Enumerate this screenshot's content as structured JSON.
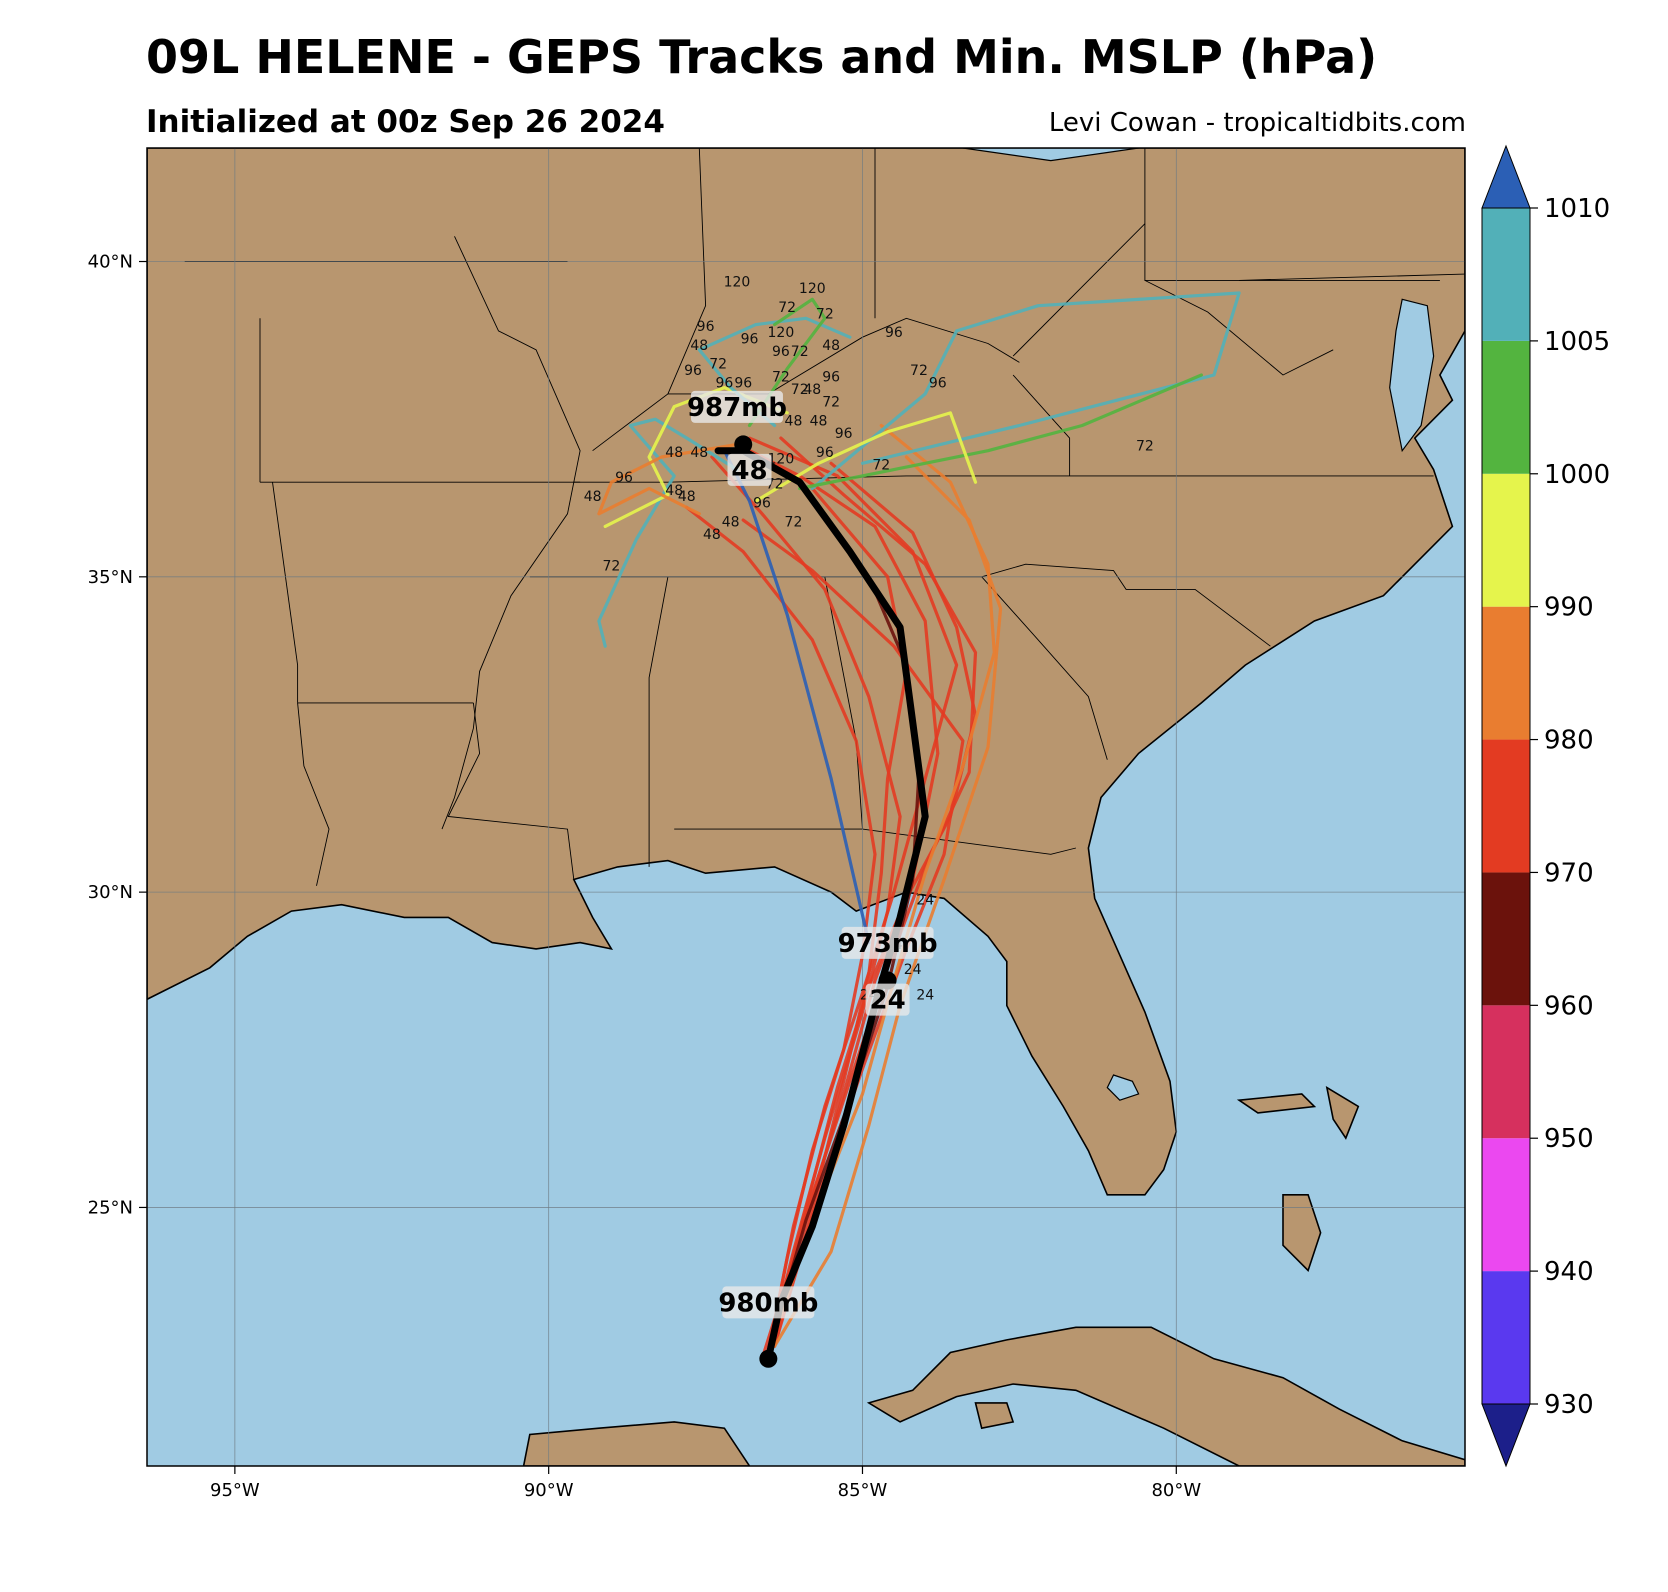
{
  "header": {
    "title": "09L HELENE - GEPS Tracks and Min. MSLP (hPa)",
    "subtitle": "Initialized at 00z Sep 26 2024",
    "credit": "Levi Cowan - tropicaltidbits.com"
  },
  "map": {
    "lon_range": [
      -96.4,
      -75.4
    ],
    "lat_range": [
      20.9,
      41.8
    ],
    "lon_ticks": [
      {
        "lon": -95,
        "label": "95°W"
      },
      {
        "lon": -90,
        "label": "90°W"
      },
      {
        "lon": -85,
        "label": "85°W"
      },
      {
        "lon": -80,
        "label": "80°W"
      }
    ],
    "lat_ticks": [
      {
        "lat": 40,
        "label": "40°N"
      },
      {
        "lat": 35,
        "label": "35°N"
      },
      {
        "lat": 30,
        "label": "30°N"
      },
      {
        "lat": 25,
        "label": "25°N"
      }
    ],
    "colors": {
      "land": "#b8966f",
      "water": "#a0cbe3",
      "border": "#000000",
      "grid": "#6e7b82"
    }
  },
  "colorbar": {
    "levels": [
      {
        "label": "1010",
        "color": "#2b5fb5"
      },
      {
        "label": "1005",
        "color": "#52b0b8"
      },
      {
        "label": "1000",
        "color": "#53b43f"
      },
      {
        "label": "990",
        "color": "#e5f44c"
      },
      {
        "label": "980",
        "color": "#e97d30"
      },
      {
        "label": "970",
        "color": "#e33b22"
      },
      {
        "label": "960",
        "color": "#6b120c"
      },
      {
        "label": "950",
        "color": "#d6305e"
      },
      {
        "label": "940",
        "color": "#eb48f0"
      },
      {
        "label": "930",
        "color": "#5a39ef"
      }
    ],
    "lower_cap_color": "#1c1f8a",
    "upper_cap_color": "#2b5fb5",
    "bands": [
      "#5a39ef",
      "#eb48f0",
      "#d6305e",
      "#6b120c",
      "#e33b22",
      "#e97d30",
      "#e5f44c",
      "#53b43f",
      "#52b0b8"
    ]
  },
  "tracks": [
    {
      "color": "#e33b22",
      "points": [
        [
          -86.6,
          22.6
        ],
        [
          -86.0,
          24.5
        ],
        [
          -85.3,
          26.8
        ],
        [
          -84.8,
          28.6
        ],
        [
          -84.2,
          30.2
        ],
        [
          -83.8,
          32.2
        ],
        [
          -84.0,
          34.3
        ],
        [
          -84.8,
          35.8
        ],
        [
          -86.0,
          36.6
        ],
        [
          -87.0,
          37.1
        ]
      ]
    },
    {
      "color": "#e33b22",
      "points": [
        [
          -86.5,
          22.7
        ],
        [
          -86.1,
          24.7
        ],
        [
          -85.6,
          26.6
        ],
        [
          -85.0,
          28.4
        ],
        [
          -84.5,
          30.0
        ],
        [
          -84.0,
          31.8
        ],
        [
          -83.5,
          33.6
        ],
        [
          -84.2,
          35.4
        ],
        [
          -85.4,
          36.6
        ],
        [
          -86.8,
          37.2
        ]
      ]
    },
    {
      "color": "#e33b22",
      "points": [
        [
          -86.5,
          22.7
        ],
        [
          -85.9,
          24.9
        ],
        [
          -85.2,
          27.0
        ],
        [
          -84.6,
          28.8
        ],
        [
          -84.0,
          30.4
        ],
        [
          -83.3,
          31.9
        ],
        [
          -83.2,
          33.8
        ],
        [
          -84.0,
          35.2
        ],
        [
          -85.3,
          36.3
        ],
        [
          -86.3,
          37.2
        ]
      ]
    },
    {
      "color": "#e33b22",
      "points": [
        [
          -86.4,
          22.8
        ],
        [
          -85.8,
          25.0
        ],
        [
          -85.3,
          27.0
        ],
        [
          -84.9,
          28.7
        ],
        [
          -84.7,
          30.3
        ],
        [
          -84.6,
          31.8
        ],
        [
          -84.3,
          33.5
        ],
        [
          -84.6,
          35.0
        ],
        [
          -85.8,
          36.4
        ]
      ]
    },
    {
      "color": "#e33b22",
      "points": [
        [
          -86.5,
          22.7
        ],
        [
          -86.0,
          24.6
        ],
        [
          -85.4,
          26.9
        ],
        [
          -84.9,
          28.5
        ],
        [
          -84.3,
          29.9
        ],
        [
          -83.6,
          31.2
        ],
        [
          -83.2,
          32.8
        ],
        [
          -83.5,
          34.2
        ],
        [
          -84.2,
          35.7
        ],
        [
          -85.5,
          36.8
        ]
      ]
    },
    {
      "color": "#e33b22",
      "points": [
        [
          -86.5,
          22.7
        ],
        [
          -86.1,
          24.3
        ],
        [
          -85.6,
          26.1
        ],
        [
          -85.0,
          28.1
        ],
        [
          -84.6,
          29.7
        ],
        [
          -84.4,
          31.2
        ],
        [
          -84.9,
          33.1
        ],
        [
          -85.6,
          34.8
        ],
        [
          -86.6,
          36.0
        ],
        [
          -87.4,
          36.9
        ]
      ]
    },
    {
      "color": "#e33b22",
      "points": [
        [
          -86.4,
          22.8
        ],
        [
          -85.7,
          25.2
        ],
        [
          -85.0,
          27.2
        ],
        [
          -84.3,
          29.1
        ],
        [
          -83.7,
          30.6
        ],
        [
          -83.4,
          32.4
        ],
        [
          -84.5,
          33.9
        ],
        [
          -85.8,
          35.1
        ],
        [
          -86.9,
          35.9
        ]
      ]
    },
    {
      "color": "#e97d30",
      "points": [
        [
          -86.4,
          22.8
        ],
        [
          -85.5,
          24.3
        ],
        [
          -84.9,
          26.3
        ],
        [
          -84.4,
          28.2
        ],
        [
          -83.7,
          30.2
        ],
        [
          -83.0,
          32.3
        ],
        [
          -82.8,
          34.5
        ],
        [
          -83.3,
          35.9
        ],
        [
          -84.3,
          36.9
        ]
      ]
    },
    {
      "color": "#e97d30",
      "points": [
        [
          -86.5,
          22.7
        ],
        [
          -85.8,
          24.8
        ],
        [
          -85.0,
          26.8
        ],
        [
          -84.5,
          28.6
        ],
        [
          -84.0,
          30.3
        ],
        [
          -83.4,
          32.0
        ],
        [
          -82.9,
          33.8
        ],
        [
          -83.0,
          35.2
        ],
        [
          -83.6,
          36.5
        ],
        [
          -84.7,
          37.4
        ]
      ]
    },
    {
      "color": "#6b120c",
      "points": [
        [
          -86.5,
          22.7
        ],
        [
          -85.9,
          24.8
        ],
        [
          -85.2,
          26.7
        ],
        [
          -84.6,
          28.5
        ],
        [
          -84.2,
          30.2
        ],
        [
          -84.1,
          31.9
        ],
        [
          -84.3,
          33.6
        ],
        [
          -84.9,
          35.0
        ]
      ]
    },
    {
      "color": "#e33b22",
      "points": [
        [
          -86.5,
          22.7
        ],
        [
          -86.2,
          24.2
        ],
        [
          -85.8,
          25.9
        ],
        [
          -85.3,
          27.5
        ],
        [
          -85.0,
          29.0
        ],
        [
          -84.8,
          30.6
        ],
        [
          -85.1,
          32.4
        ],
        [
          -85.8,
          34.0
        ],
        [
          -86.9,
          35.4
        ],
        [
          -87.8,
          36.1
        ]
      ]
    },
    {
      "color": "#2b5fb5",
      "points": [
        [
          -84.9,
          29.2
        ],
        [
          -85.5,
          31.8
        ],
        [
          -86.2,
          34.4
        ],
        [
          -86.8,
          36.2
        ],
        [
          -87.2,
          37.0
        ]
      ]
    },
    {
      "color": "#52b0b8",
      "points": [
        [
          -85.8,
          36.4
        ],
        [
          -84.0,
          37.9
        ],
        [
          -83.5,
          38.9
        ],
        [
          -82.2,
          39.3
        ],
        [
          -79.0,
          39.5
        ],
        [
          -79.4,
          38.2
        ],
        [
          -82.5,
          37.4
        ],
        [
          -85.0,
          36.8
        ]
      ]
    },
    {
      "color": "#52b0b8",
      "points": [
        [
          -87.0,
          36.7
        ],
        [
          -87.8,
          37.2
        ],
        [
          -88.3,
          37.5
        ],
        [
          -88.7,
          37.4
        ],
        [
          -88.0,
          36.6
        ],
        [
          -88.6,
          35.6
        ],
        [
          -89.2,
          34.3
        ],
        [
          -89.1,
          33.9
        ]
      ]
    },
    {
      "color": "#53b43f",
      "points": [
        [
          -86.0,
          36.4
        ],
        [
          -84.5,
          36.7
        ],
        [
          -83.0,
          37.0
        ],
        [
          -81.5,
          37.4
        ],
        [
          -79.6,
          38.2
        ]
      ]
    },
    {
      "color": "#e5f44c",
      "points": [
        [
          -86.7,
          36.2
        ],
        [
          -85.7,
          36.8
        ],
        [
          -84.6,
          37.3
        ],
        [
          -83.6,
          37.6
        ],
        [
          -83.2,
          36.5
        ]
      ]
    },
    {
      "color": "#e5f44c",
      "points": [
        [
          -86.2,
          37.6
        ],
        [
          -87.2,
          38.0
        ],
        [
          -88.0,
          37.7
        ],
        [
          -88.4,
          36.9
        ],
        [
          -88.1,
          36.3
        ],
        [
          -89.1,
          35.8
        ]
      ]
    },
    {
      "color": "#e97d30",
      "points": [
        [
          -87.0,
          37.1
        ],
        [
          -88.2,
          36.9
        ],
        [
          -89.0,
          36.5
        ],
        [
          -89.2,
          36.0
        ],
        [
          -88.4,
          36.4
        ],
        [
          -87.6,
          36.0
        ]
      ]
    },
    {
      "color": "#52b0b8",
      "points": [
        [
          -86.4,
          37.4
        ],
        [
          -87.1,
          38.0
        ],
        [
          -87.6,
          38.6
        ],
        [
          -86.7,
          39.0
        ],
        [
          -85.9,
          39.1
        ],
        [
          -85.2,
          38.8
        ]
      ]
    },
    {
      "color": "#53b43f",
      "points": [
        [
          -86.8,
          37.4
        ],
        [
          -86.2,
          38.3
        ],
        [
          -85.6,
          39.1
        ],
        [
          -85.8,
          39.4
        ],
        [
          -86.4,
          39.0
        ]
      ]
    }
  ],
  "mean_track": {
    "color": "#000000",
    "points": [
      [
        -86.5,
        22.6
      ],
      [
        -86.3,
        23.5
      ],
      [
        -85.8,
        24.7
      ],
      [
        -85.3,
        26.3
      ],
      [
        -84.8,
        28.2
      ],
      [
        -84.4,
        29.6
      ],
      [
        -84.0,
        31.2
      ],
      [
        -84.2,
        32.7
      ],
      [
        -84.4,
        34.2
      ],
      [
        -85.2,
        35.4
      ],
      [
        -86.0,
        36.5
      ],
      [
        -86.9,
        37.0
      ],
      [
        -87.3,
        37.0
      ]
    ]
  },
  "hour_labels": [
    {
      "text": "120",
      "lon": -87.0,
      "lat": 39.6
    },
    {
      "text": "120",
      "lon": -85.8,
      "lat": 39.5
    },
    {
      "text": "72",
      "lon": -86.2,
      "lat": 39.2
    },
    {
      "text": "72",
      "lon": -85.6,
      "lat": 39.1
    },
    {
      "text": "96",
      "lon": -87.5,
      "lat": 38.9
    },
    {
      "text": "96",
      "lon": -86.8,
      "lat": 38.7
    },
    {
      "text": "120",
      "lon": -86.3,
      "lat": 38.8
    },
    {
      "text": "96",
      "lon": -84.5,
      "lat": 38.8
    },
    {
      "text": "48",
      "lon": -87.6,
      "lat": 38.6
    },
    {
      "text": "96",
      "lon": -86.3,
      "lat": 38.5
    },
    {
      "text": "72",
      "lon": -86.0,
      "lat": 38.5
    },
    {
      "text": "48",
      "lon": -85.5,
      "lat": 38.6
    },
    {
      "text": "72",
      "lon": -87.3,
      "lat": 38.3
    },
    {
      "text": "96",
      "lon": -87.7,
      "lat": 38.2
    },
    {
      "text": "72",
      "lon": -84.1,
      "lat": 38.2
    },
    {
      "text": "96",
      "lon": -83.8,
      "lat": 38.0
    },
    {
      "text": "96",
      "lon": -87.2,
      "lat": 38.0
    },
    {
      "text": "96",
      "lon": -86.9,
      "lat": 38.0
    },
    {
      "text": "72",
      "lon": -86.3,
      "lat": 38.1
    },
    {
      "text": "72",
      "lon": -86.0,
      "lat": 37.9
    },
    {
      "text": "48",
      "lon": -85.8,
      "lat": 37.9
    },
    {
      "text": "72",
      "lon": -85.5,
      "lat": 37.7
    },
    {
      "text": "96",
      "lon": -85.5,
      "lat": 38.1
    },
    {
      "text": "48",
      "lon": -86.1,
      "lat": 37.4
    },
    {
      "text": "48",
      "lon": -85.7,
      "lat": 37.4
    },
    {
      "text": "96",
      "lon": -85.3,
      "lat": 37.2
    },
    {
      "text": "72",
      "lon": -80.5,
      "lat": 37.0
    },
    {
      "text": "48",
      "lon": -88.0,
      "lat": 36.9
    },
    {
      "text": "48",
      "lon": -87.6,
      "lat": 36.9
    },
    {
      "text": "120",
      "lon": -86.3,
      "lat": 36.8
    },
    {
      "text": "96",
      "lon": -85.6,
      "lat": 36.9
    },
    {
      "text": "72",
      "lon": -84.7,
      "lat": 36.7
    },
    {
      "text": "96",
      "lon": -88.8,
      "lat": 36.5
    },
    {
      "text": "48",
      "lon": -89.3,
      "lat": 36.2
    },
    {
      "text": "48",
      "lon": -88.0,
      "lat": 36.3
    },
    {
      "text": "48",
      "lon": -87.8,
      "lat": 36.2
    },
    {
      "text": "72",
      "lon": -86.4,
      "lat": 36.4
    },
    {
      "text": "96",
      "lon": -86.6,
      "lat": 36.1
    },
    {
      "text": "72",
      "lon": -86.1,
      "lat": 35.8
    },
    {
      "text": "48",
      "lon": -87.1,
      "lat": 35.8
    },
    {
      "text": "48",
      "lon": -87.4,
      "lat": 35.6
    },
    {
      "text": "72",
      "lon": -89.0,
      "lat": 35.1
    },
    {
      "text": "24",
      "lon": -84.0,
      "lat": 29.8
    },
    {
      "text": "24",
      "lon": -84.5,
      "lat": 29.1
    },
    {
      "text": "24",
      "lon": -84.0,
      "lat": 28.3
    },
    {
      "text": "24",
      "lon": -84.9,
      "lat": 28.3
    },
    {
      "text": "24",
      "lon": -84.2,
      "lat": 28.7
    }
  ],
  "annotations": [
    {
      "text": "987mb",
      "lon": -87.0,
      "lat": 37.6
    },
    {
      "text": "48",
      "lon": -86.8,
      "lat": 36.6
    },
    {
      "text": "973mb",
      "lon": -84.6,
      "lat": 29.1
    },
    {
      "text": "24",
      "lon": -84.6,
      "lat": 28.2
    },
    {
      "text": "980mb",
      "lon": -86.5,
      "lat": 23.4
    }
  ],
  "markers": [
    {
      "lon": -86.5,
      "lat": 22.6
    },
    {
      "lon": -84.6,
      "lat": 28.6
    },
    {
      "lon": -86.9,
      "lat": 37.1
    }
  ]
}
